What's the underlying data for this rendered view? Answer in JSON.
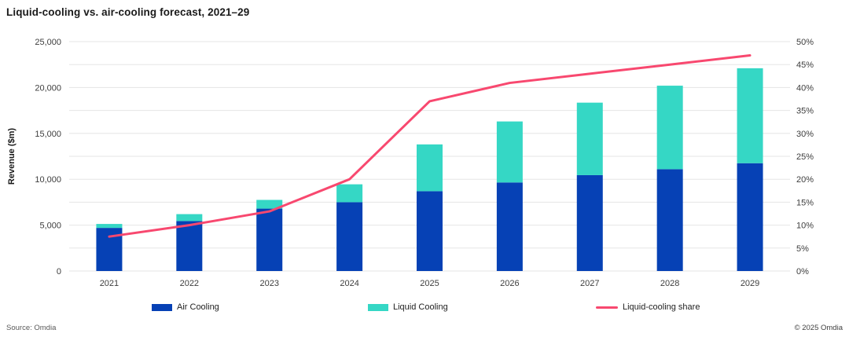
{
  "title": "Liquid-cooling vs. air-cooling forecast, 2021–29",
  "footer": {
    "source": "Source: Omdia",
    "copyright": "© 2025 Omdia"
  },
  "chart_data": {
    "type": "bar",
    "subtype": "stacked-bar-with-line-combo",
    "title": "Liquid-cooling vs. air-cooling forecast, 2021–29",
    "categories": [
      "2021",
      "2022",
      "2023",
      "2024",
      "2025",
      "2026",
      "2027",
      "2028",
      "2029"
    ],
    "series": [
      {
        "name": "Air Cooling",
        "type": "bar",
        "axis": "left",
        "color": "#0641B5",
        "values": [
          4700,
          5450,
          6800,
          7500,
          8700,
          9650,
          10450,
          11100,
          11750
        ]
      },
      {
        "name": "Liquid Cooling",
        "type": "bar",
        "axis": "left",
        "color": "#35D7C5",
        "values": [
          430,
          750,
          950,
          1950,
          5100,
          6650,
          7900,
          9100,
          10350
        ]
      },
      {
        "name": "Liquid-cooling share",
        "type": "line",
        "axis": "right",
        "color": "#F8486F",
        "values": [
          7.5,
          10,
          13,
          20,
          37,
          41,
          43,
          45,
          47
        ]
      }
    ],
    "left_axis": {
      "label": "Revenue ($m)",
      "min": 0,
      "max": 25000,
      "label_step": 5000,
      "grid_step": 2500,
      "ticks": [
        "0",
        "5,000",
        "10,000",
        "15,000",
        "20,000",
        "25,000"
      ]
    },
    "right_axis": {
      "min": 0,
      "max": 50,
      "step": 5,
      "ticks": [
        "0%",
        "5%",
        "10%",
        "15%",
        "20%",
        "25%",
        "30%",
        "35%",
        "40%",
        "45%",
        "50%"
      ]
    },
    "grid": true,
    "grid_color": "#E5E5E5",
    "tick_color": "#3D3D3D",
    "legend_position": "bottom"
  }
}
